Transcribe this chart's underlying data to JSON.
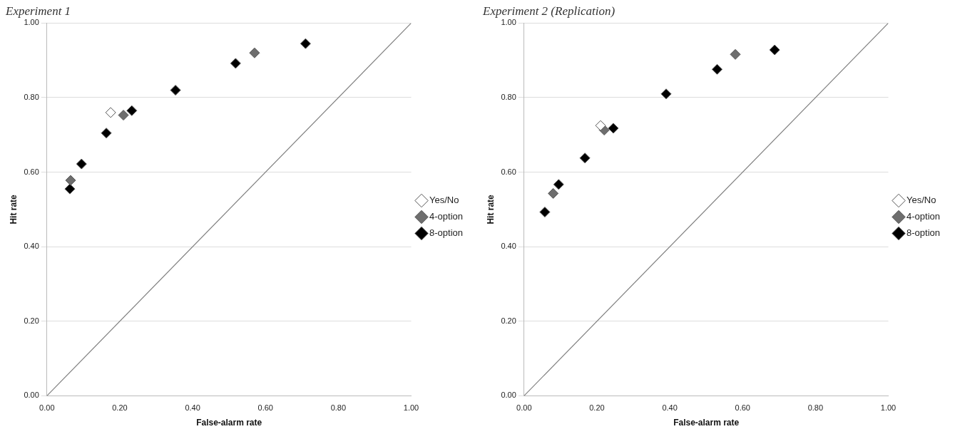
{
  "chart_data": [
    {
      "type": "scatter",
      "title": "Experiment 1",
      "xlabel": "False-alarm rate",
      "ylabel": "Hit rate",
      "xlim": [
        0,
        1
      ],
      "ylim": [
        0,
        1
      ],
      "xticks": [
        {
          "value": 0,
          "label": "0.00"
        },
        {
          "value": 0.2,
          "label": "0.20"
        },
        {
          "value": 0.4,
          "label": "0.40"
        },
        {
          "value": 0.6,
          "label": "0.60"
        },
        {
          "value": 0.8,
          "label": "0.80"
        },
        {
          "value": 1,
          "label": "1.00"
        }
      ],
      "yticks": [
        {
          "value": 0,
          "label": "0.00"
        },
        {
          "value": 0.2,
          "label": "0.20"
        },
        {
          "value": 0.4,
          "label": "0.40"
        },
        {
          "value": 0.6,
          "label": "0.60"
        },
        {
          "value": 0.8,
          "label": "0.80"
        },
        {
          "value": 1,
          "label": "1.00"
        }
      ],
      "grid": "y",
      "legend": "right",
      "marker": "diamond",
      "series": [
        {
          "type": "line",
          "marker": "none",
          "color": "#7f7f7f",
          "x": [
            0,
            1
          ],
          "values": [
            0,
            1
          ]
        },
        {
          "name": "Yes/No",
          "color": "#ffffff",
          "x": [
            0.175
          ],
          "values": [
            0.76
          ]
        },
        {
          "name": "4-option",
          "color": "#6e6e6e",
          "x": [
            0.065,
            0.21,
            0.57
          ],
          "values": [
            0.578,
            0.753,
            0.92
          ]
        },
        {
          "name": "8-option",
          "color": "#000000",
          "x": [
            0.063,
            0.095,
            0.163,
            0.233,
            0.353,
            0.518,
            0.71
          ],
          "values": [
            0.555,
            0.622,
            0.705,
            0.765,
            0.82,
            0.892,
            0.945
          ]
        }
      ]
    },
    {
      "type": "scatter",
      "title": "Experiment 2 (Replication)",
      "xlabel": "False-alarm rate",
      "ylabel": "Hit rate",
      "xlim": [
        0,
        1
      ],
      "ylim": [
        0,
        1
      ],
      "xticks": [
        {
          "value": 0,
          "label": "0.00"
        },
        {
          "value": 0.2,
          "label": "0.20"
        },
        {
          "value": 0.4,
          "label": "0.40"
        },
        {
          "value": 0.6,
          "label": "0.60"
        },
        {
          "value": 0.8,
          "label": "0.80"
        },
        {
          "value": 1,
          "label": "1.00"
        }
      ],
      "yticks": [
        {
          "value": 0,
          "label": "0.00"
        },
        {
          "value": 0.2,
          "label": "0.20"
        },
        {
          "value": 0.4,
          "label": "0.40"
        },
        {
          "value": 0.6,
          "label": "0.60"
        },
        {
          "value": 0.8,
          "label": "0.80"
        },
        {
          "value": 1,
          "label": "1.00"
        }
      ],
      "grid": "y",
      "legend": "right",
      "marker": "diamond",
      "series": [
        {
          "type": "line",
          "marker": "none",
          "color": "#7f7f7f",
          "x": [
            0,
            1
          ],
          "values": [
            0,
            1
          ]
        },
        {
          "name": "Yes/No",
          "color": "#ffffff",
          "x": [
            0.21
          ],
          "values": [
            0.725
          ]
        },
        {
          "name": "4-option",
          "color": "#6e6e6e",
          "x": [
            0.08,
            0.22,
            0.58
          ],
          "values": [
            0.543,
            0.713,
            0.916
          ]
        },
        {
          "name": "8-option",
          "color": "#000000",
          "x": [
            0.057,
            0.095,
            0.167,
            0.245,
            0.39,
            0.53,
            0.688
          ],
          "values": [
            0.493,
            0.567,
            0.638,
            0.718,
            0.81,
            0.876,
            0.928
          ]
        }
      ]
    }
  ]
}
